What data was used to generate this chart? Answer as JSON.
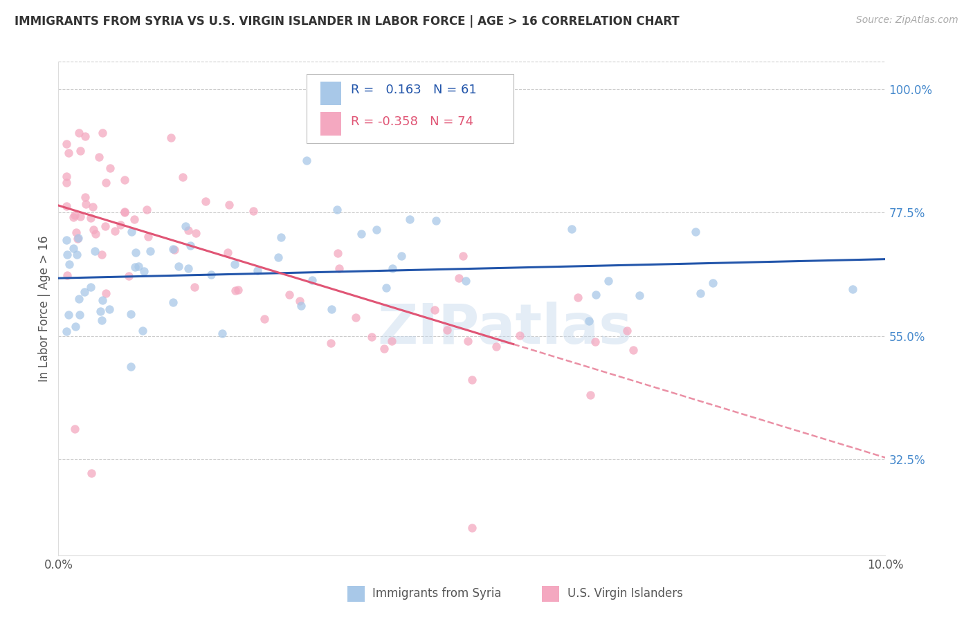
{
  "title": "IMMIGRANTS FROM SYRIA VS U.S. VIRGIN ISLANDER IN LABOR FORCE | AGE > 16 CORRELATION CHART",
  "source": "Source: ZipAtlas.com",
  "ylabel": "In Labor Force | Age > 16",
  "xlim": [
    0.0,
    0.1
  ],
  "ylim": [
    0.15,
    1.05
  ],
  "xticks": [
    0.0,
    0.02,
    0.04,
    0.06,
    0.08,
    0.1
  ],
  "xticklabels": [
    "0.0%",
    "",
    "",
    "",
    "",
    "10.0%"
  ],
  "yticks_right": [
    1.0,
    0.775,
    0.55,
    0.325
  ],
  "yticklabels_right": [
    "100.0%",
    "77.5%",
    "55.0%",
    "32.5%"
  ],
  "blue_color": "#a8c8e8",
  "pink_color": "#f4a8c0",
  "blue_line_color": "#2255aa",
  "pink_line_color": "#e05575",
  "blue_R": 0.163,
  "blue_N": 61,
  "pink_R": -0.358,
  "pink_N": 74,
  "legend_label_blue": "Immigrants from Syria",
  "legend_label_pink": "U.S. Virgin Islanders",
  "background_color": "#ffffff",
  "grid_color": "#cccccc",
  "watermark": "ZIPatlas",
  "title_color": "#333333",
  "source_color": "#aaaaaa",
  "right_tick_color": "#4488cc"
}
